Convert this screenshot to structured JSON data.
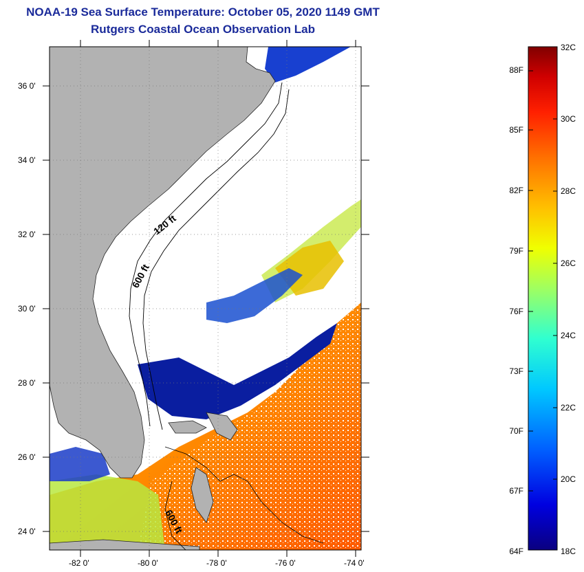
{
  "title": {
    "line1": "NOAA-19 Sea Surface Temperature:  October 05, 2020 1149 GMT",
    "line2": "Rutgers Coastal Ocean Observation Lab"
  },
  "map": {
    "lat_labels": [
      "36 0'",
      "34 0'",
      "32 0'",
      "30 0'",
      "28 0'",
      "26 0'",
      "24 0'"
    ],
    "lon_labels": [
      "-82 0'",
      "-80 0'",
      "-78 0'",
      "-76 0'",
      "-74 0'"
    ],
    "contour_labels": [
      "120 ft",
      "600 ft",
      "600 ft"
    ]
  },
  "colorbar": {
    "f_labels": [
      "88F",
      "85F",
      "82F",
      "79F",
      "76F",
      "73F",
      "70F",
      "67F",
      "64F"
    ],
    "c_labels": [
      "32C",
      "30C",
      "28C",
      "26C",
      "24C",
      "22C",
      "20C",
      "18C"
    ],
    "colors": [
      "#0a0080",
      "#0000e0",
      "#0060ff",
      "#00c8ff",
      "#30ffd0",
      "#a0ff60",
      "#f0ff00",
      "#ffc000",
      "#ff7000",
      "#ff2000",
      "#d00000",
      "#800000"
    ]
  }
}
